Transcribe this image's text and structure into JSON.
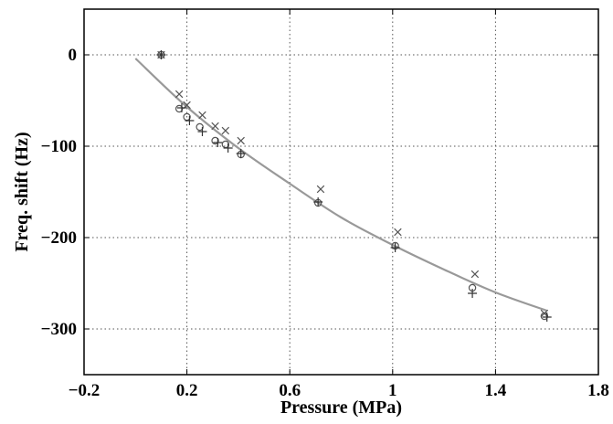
{
  "chart_data": {
    "type": "scatter",
    "title": "",
    "xlabel": "Pressure (MPa)",
    "ylabel": "Freq. shift (Hz)",
    "xlim": [
      -0.2,
      1.8
    ],
    "ylim": [
      -350,
      50
    ],
    "grid": true,
    "x_ticks": [
      -0.2,
      0.2,
      0.6,
      1,
      1.4,
      1.8
    ],
    "x_tick_labels": [
      "−0.2",
      "0.2",
      "0.6",
      "1",
      "1.4",
      "1.8"
    ],
    "y_ticks": [
      0,
      -100,
      -200,
      -300
    ],
    "y_tick_labels": [
      "0",
      "−100",
      "−200",
      "−300"
    ],
    "series": [
      {
        "marker": "o",
        "x": [
          0.1,
          0.17,
          0.2,
          0.25,
          0.31,
          0.35,
          0.41,
          0.71,
          1.01,
          1.31,
          1.59
        ],
        "y": [
          0,
          -59,
          -68,
          -79,
          -94,
          -98,
          -109,
          -162,
          -209,
          -255,
          -286
        ]
      },
      {
        "marker": "x",
        "x": [
          0.1,
          0.17,
          0.2,
          0.26,
          0.31,
          0.35,
          0.41,
          0.72,
          1.02,
          1.32,
          1.59
        ],
        "y": [
          0,
          -43,
          -55,
          -66,
          -78,
          -83,
          -94,
          -147,
          -194,
          -240,
          -283
        ]
      },
      {
        "marker": "+",
        "x": [
          0.1,
          0.18,
          0.21,
          0.26,
          0.32,
          0.36,
          0.41,
          0.71,
          1.01,
          1.31,
          1.6
        ],
        "y": [
          0,
          -58,
          -72,
          -84,
          -96,
          -102,
          -108,
          -161,
          -211,
          -261,
          -287
        ]
      },
      {
        "style": "line",
        "x": [
          0.0,
          0.2,
          0.4,
          0.6,
          0.8,
          1.0,
          1.2,
          1.4,
          1.6
        ],
        "y": [
          -4,
          -57,
          -102,
          -141,
          -178,
          -208,
          -235,
          -260,
          -280
        ]
      }
    ],
    "colors": {
      "fit_line": "#999999",
      "markers": "#555555",
      "grid": "#555555",
      "axes": "#000000"
    }
  }
}
